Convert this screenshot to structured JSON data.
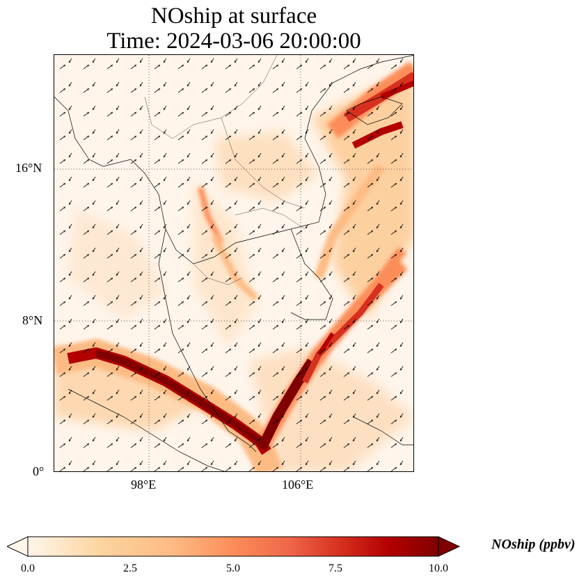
{
  "title": {
    "line1": "NOship at surface",
    "line2": "Time: 2024-03-06 20:00:00"
  },
  "map": {
    "lat_labels": [
      "16°N",
      "8°N",
      "0°"
    ],
    "lon_labels": [
      "98°E",
      "106°E"
    ],
    "lat_ticks": [
      16,
      8,
      0
    ],
    "lon_ticks": [
      98,
      106
    ],
    "extent": {
      "lon_min": 93,
      "lon_max": 112,
      "lat_min": 0,
      "lat_max": 22
    },
    "gridlines": "dotted",
    "field": "NOship",
    "colormap": "OrRd"
  },
  "colorbar": {
    "label": "NOship (ppbv)",
    "ticks": [
      "0.0",
      "2.5",
      "5.0",
      "7.5",
      "10.0"
    ],
    "tick_values": [
      0,
      2.5,
      5.0,
      7.5,
      10.0
    ],
    "range": [
      0,
      10
    ],
    "extend": "both",
    "colors": [
      "#fff5eb",
      "#fdd49e",
      "#fdbb84",
      "#fc8d59",
      "#ef6548",
      "#d7301f",
      "#b30000",
      "#7f0000"
    ]
  }
}
